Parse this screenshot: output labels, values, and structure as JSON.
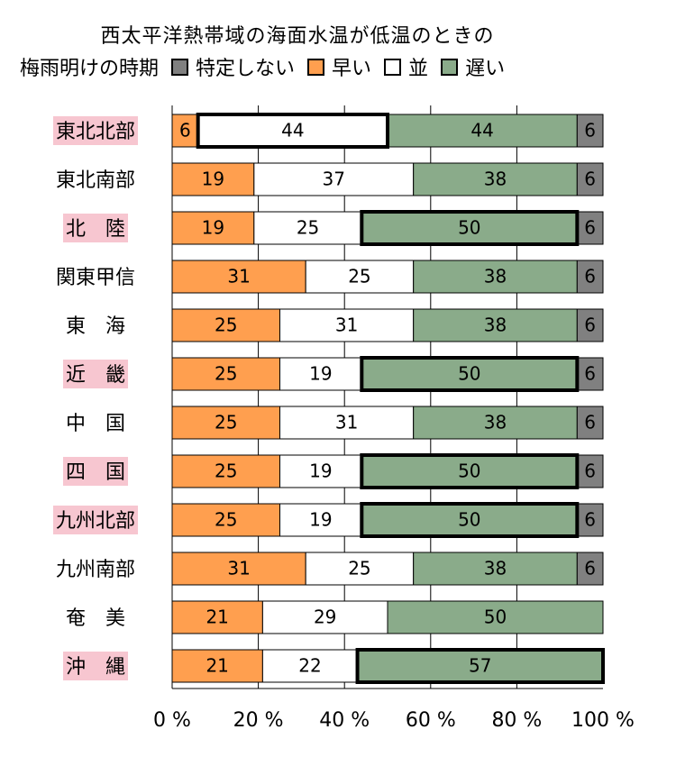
{
  "title": {
    "line1": "西太平洋熱帯域の海面水温が低温のときの",
    "line2": "梅雨明けの時期"
  },
  "colors": {
    "unspecified": "#808080",
    "early": "#ff9f4f",
    "normal": "#ffffff",
    "late": "#8aab8a",
    "highlight_bg": "#f7c6d0"
  },
  "legend": [
    {
      "key": "unspecified",
      "label": "特定しない"
    },
    {
      "key": "early",
      "label": "早い"
    },
    {
      "key": "normal",
      "label": "並"
    },
    {
      "key": "late",
      "label": "遅い"
    }
  ],
  "chart_data": {
    "type": "bar",
    "orientation": "horizontal-stacked-percent",
    "title": "西太平洋熱帯域の海面水温が低温のときの梅雨明けの時期",
    "categories": [
      "東北北部",
      "東北南部",
      "北　陸",
      "関東甲信",
      "東　海",
      "近　畿",
      "中　国",
      "四　国",
      "九州北部",
      "九州南部",
      "奄　美",
      "沖　縄"
    ],
    "highlighted": [
      true,
      false,
      true,
      false,
      false,
      true,
      false,
      true,
      true,
      false,
      false,
      true
    ],
    "series": [
      {
        "name": "早い",
        "key": "early",
        "values": [
          6,
          19,
          19,
          31,
          25,
          25,
          25,
          25,
          25,
          31,
          21,
          21
        ]
      },
      {
        "name": "並",
        "key": "normal",
        "values": [
          44,
          37,
          25,
          25,
          31,
          19,
          31,
          19,
          19,
          25,
          29,
          22
        ]
      },
      {
        "name": "遅い",
        "key": "late",
        "values": [
          44,
          38,
          50,
          38,
          38,
          50,
          38,
          50,
          50,
          38,
          50,
          57
        ]
      },
      {
        "name": "特定しない",
        "key": "unspecified",
        "values": [
          6,
          6,
          6,
          6,
          6,
          6,
          6,
          6,
          6,
          6,
          0,
          0
        ]
      }
    ],
    "emphasized_segment": [
      "normal",
      null,
      "late",
      null,
      null,
      "late",
      null,
      "late",
      "late",
      null,
      null,
      "late"
    ],
    "xlim": [
      0,
      100
    ],
    "xticks": [
      "0 %",
      "20 %",
      "40 %",
      "60 %",
      "80 %",
      "100 %"
    ],
    "grid": true
  }
}
